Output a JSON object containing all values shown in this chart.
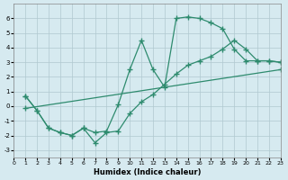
{
  "line1_x": [
    1,
    2,
    3,
    4,
    5,
    6,
    7,
    8,
    9,
    10,
    11,
    12,
    13,
    14,
    15,
    16,
    17,
    18,
    19,
    20,
    21,
    22,
    23
  ],
  "line1_y": [
    0.7,
    -0.3,
    -1.5,
    -1.8,
    -2.0,
    -1.5,
    -1.8,
    -1.7,
    0.1,
    2.5,
    4.5,
    2.5,
    1.3,
    6.0,
    6.1,
    6.0,
    5.7,
    5.3,
    3.9,
    3.1,
    3.1,
    3.1,
    3.0
  ],
  "line2_x": [
    1,
    2,
    3,
    4,
    5,
    6,
    7,
    8,
    9,
    10,
    11,
    12,
    13,
    14,
    15,
    16,
    17,
    18,
    19,
    20,
    21,
    22,
    23
  ],
  "line2_y": [
    0.7,
    -0.3,
    -1.5,
    -1.8,
    -2.0,
    -1.5,
    -2.5,
    -1.8,
    -1.7,
    -0.5,
    0.3,
    0.8,
    1.5,
    2.2,
    2.8,
    3.1,
    3.4,
    3.9,
    4.5,
    3.9,
    3.1,
    3.1,
    3.0
  ],
  "line3_x": [
    1,
    23
  ],
  "line3_y": [
    -0.15,
    2.5
  ],
  "color": "#2e8b6e",
  "bg_color": "#d6eaf0",
  "grid_color": "#b0c8d0",
  "xlabel": "Humidex (Indice chaleur)",
  "ylim": [
    -3.5,
    7
  ],
  "xlim": [
    0,
    23
  ],
  "yticks": [
    -3,
    -2,
    -1,
    0,
    1,
    2,
    3,
    4,
    5,
    6
  ],
  "xticks": [
    0,
    1,
    2,
    3,
    4,
    5,
    6,
    7,
    8,
    9,
    10,
    11,
    12,
    13,
    14,
    15,
    16,
    17,
    18,
    19,
    20,
    21,
    22,
    23
  ]
}
